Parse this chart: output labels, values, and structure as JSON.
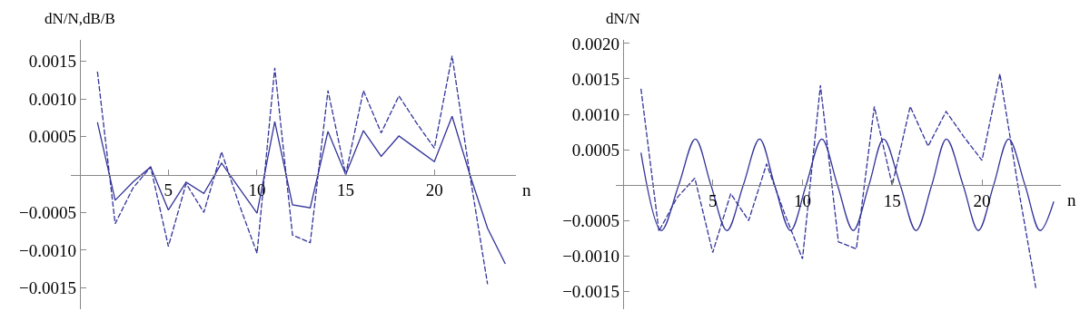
{
  "chart_data": [
    {
      "type": "line",
      "ylabel": "dN/N,dB/B",
      "xlabel": "n",
      "xlim": [
        -0.5,
        24.6
      ],
      "ylim": [
        -0.00178,
        0.00178
      ],
      "xticks": [
        5,
        10,
        15,
        20
      ],
      "yticks": [
        {
          "value": -0.0015,
          "label": "−0.0015"
        },
        {
          "value": -0.001,
          "label": "−0.0010"
        },
        {
          "value": -0.0005,
          "label": "−0.0005"
        },
        {
          "value": 0.0005,
          "label": "0.0005"
        },
        {
          "value": 0.001,
          "label": "0.0010"
        },
        {
          "value": 0.0015,
          "label": "0.0015"
        }
      ],
      "grid": false,
      "marker": "none",
      "x": [
        1,
        2,
        3,
        4,
        5,
        6,
        7,
        8,
        9,
        10,
        11,
        12,
        13,
        14,
        15,
        16,
        17,
        18,
        19,
        20,
        21,
        22,
        23,
        24
      ],
      "series": [
        {
          "color": "#33339a",
          "line_style": "solid",
          "values": [
            0.00069,
            -0.00034,
            -0.0001,
            0.0001,
            -0.00047,
            -0.0001,
            -0.00025,
            0.00015,
            -0.00018,
            -0.00051,
            0.0007,
            -0.0004,
            -0.00044,
            0.00057,
            0.0,
            0.00058,
            0.00024,
            0.00051,
            0.00034,
            0.00017,
            0.00077,
            0.0,
            -0.00071,
            -0.00118
          ]
        },
        {
          "color": "#33339a",
          "line_style": "dashed",
          "values": [
            0.00136,
            -0.00065,
            -0.00018,
            0.0001,
            -0.00095,
            -0.00012,
            -0.0005,
            0.0003,
            -0.0004,
            -0.00104,
            0.00141,
            -0.0008,
            -0.0009,
            0.00111,
            0.0,
            0.00111,
            0.00055,
            0.00104,
            0.00068,
            0.00035,
            0.00157,
            0.0,
            -0.00145,
            null
          ]
        }
      ]
    },
    {
      "type": "line",
      "ylabel": "dN/N",
      "xlabel": "n",
      "xlim": [
        -0.4,
        24.4
      ],
      "ylim": [
        -0.00175,
        0.00205
      ],
      "xticks": [
        5,
        10,
        15,
        20
      ],
      "yticks": [
        {
          "value": -0.0015,
          "label": "−0.0015"
        },
        {
          "value": -0.001,
          "label": "−0.0010"
        },
        {
          "value": -0.0005,
          "label": "−0.0005"
        },
        {
          "value": 0.0005,
          "label": "0.0005"
        },
        {
          "value": 0.001,
          "label": "0.0010"
        },
        {
          "value": 0.0015,
          "label": "0.0015"
        },
        {
          "value": 0.002,
          "label": "0.0020"
        }
      ],
      "grid": false,
      "marker": "none",
      "series": [
        {
          "color": "#33339a",
          "line_style": "solid",
          "x": [
            1,
            2.13,
            3.1,
            4.03,
            4.9,
            5.79,
            6.7,
            7.61,
            8.45,
            9.33,
            10.2,
            11.08,
            11.95,
            12.83,
            13.7,
            14.52,
            15.45,
            16.33,
            17.2,
            18.02,
            18.95,
            19.8,
            20.65,
            21.49,
            22.4,
            23.24,
            24
          ],
          "values": [
            0.00046,
            -0.00064,
            0.0,
            0.00065,
            0.0,
            -0.00064,
            0.0,
            0.00065,
            0.0,
            -0.00064,
            0.0,
            0.00065,
            0.0,
            -0.00064,
            0.0,
            0.00065,
            0.0,
            -0.00064,
            0.0,
            0.00065,
            0.0,
            -0.00064,
            0.0,
            0.00065,
            0.0,
            -0.00064,
            -0.00023
          ]
        },
        {
          "color": "#33339a",
          "line_style": "dashed",
          "x": [
            1,
            2,
            3,
            4,
            5,
            6,
            7,
            8,
            9,
            10,
            11,
            12,
            13,
            14,
            15,
            16,
            17,
            18,
            19,
            20,
            21,
            22,
            23
          ],
          "values": [
            0.00136,
            -0.00065,
            -0.00018,
            0.0001,
            -0.00095,
            -0.00012,
            -0.0005,
            0.0003,
            -0.0004,
            -0.00104,
            0.00141,
            -0.0008,
            -0.0009,
            0.00111,
            0.0,
            0.00111,
            0.00055,
            0.00104,
            0.00068,
            0.00035,
            0.00157,
            0.0,
            -0.00145
          ]
        }
      ]
    }
  ]
}
